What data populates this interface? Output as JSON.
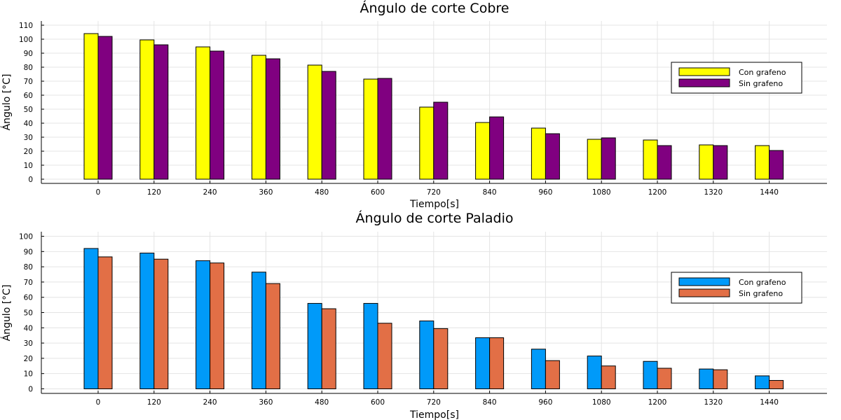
{
  "chart_data": [
    {
      "type": "bar",
      "title": "Ángulo de corte Cobre",
      "xlabel": "Tiempo[s]",
      "ylabel": "Ángulo [°C]",
      "categories": [
        "0",
        "120",
        "240",
        "360",
        "480",
        "600",
        "720",
        "840",
        "960",
        "1080",
        "1200",
        "1320",
        "1440"
      ],
      "series": [
        {
          "name": "Con grafeno",
          "color": "#ffff00",
          "values": [
            104,
            99.5,
            94.5,
            88.5,
            81.5,
            71.5,
            51.5,
            40.5,
            36.5,
            28.5,
            28,
            24.5,
            24
          ]
        },
        {
          "name": "Sin grafeno",
          "color": "#800080",
          "values": [
            102,
            96,
            91.5,
            86,
            77,
            72,
            55,
            44.5,
            32.5,
            29.5,
            24,
            24,
            20.5
          ]
        }
      ],
      "yticks": [
        0,
        10,
        20,
        30,
        40,
        50,
        60,
        70,
        80,
        90,
        100,
        110
      ],
      "ylim": [
        -3,
        113
      ],
      "grid": true,
      "legend": "right"
    },
    {
      "type": "bar",
      "title": "Ángulo de corte Paladio",
      "xlabel": "Tiempo[s]",
      "ylabel": "Ángulo [°C]",
      "categories": [
        "0",
        "120",
        "240",
        "360",
        "480",
        "600",
        "720",
        "840",
        "960",
        "1080",
        "1200",
        "1320",
        "1440"
      ],
      "series": [
        {
          "name": "Con grafeno",
          "color": "#009af9",
          "values": [
            92,
            89,
            84,
            76.5,
            56,
            56,
            44.5,
            33.5,
            26,
            21.5,
            18,
            13,
            8.5
          ]
        },
        {
          "name": "Sin grafeno",
          "color": "#e26f46",
          "values": [
            86.5,
            85,
            82.5,
            69,
            52.5,
            43,
            39.5,
            33.5,
            18.5,
            15,
            13.5,
            12.5,
            5.5
          ]
        }
      ],
      "yticks": [
        0,
        10,
        20,
        30,
        40,
        50,
        60,
        70,
        80,
        90,
        100
      ],
      "ylim": [
        -3,
        103
      ],
      "grid": true,
      "legend": "right"
    }
  ]
}
